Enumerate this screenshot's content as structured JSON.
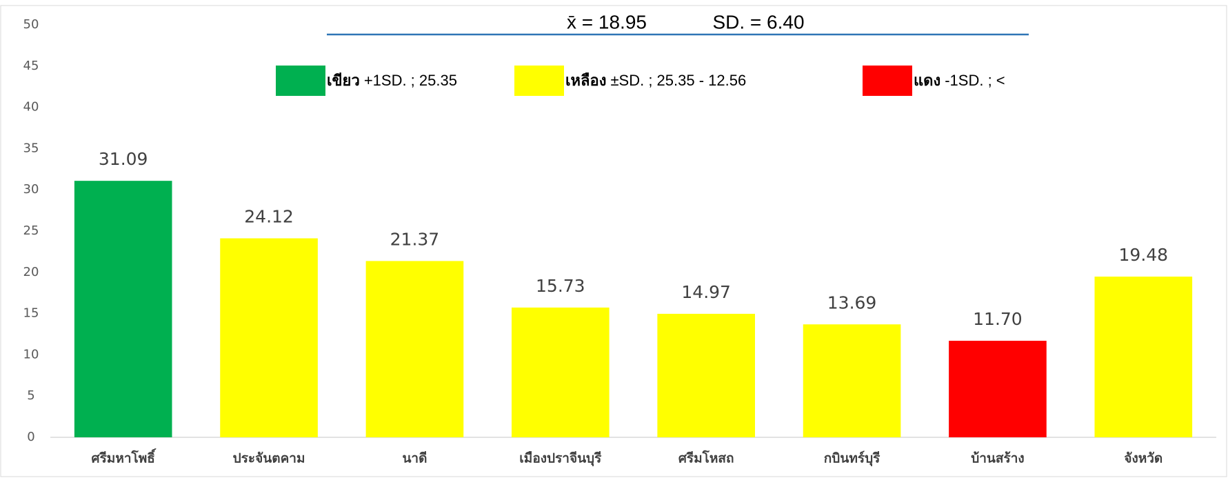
{
  "chart_data": {
    "type": "bar",
    "annotation": {
      "mean": "x̄ =  18.95",
      "sd": "SD. = 6.40"
    },
    "legend": [
      {
        "name": "เขียว",
        "label": "+1SD. ; 25.35",
        "color": "#00b050"
      },
      {
        "name": "เหลือง",
        "label": "±SD. ;   25.35  -  12.56",
        "color": "#ffff00"
      },
      {
        "name": "แดง",
        "label": "-1SD. ; <",
        "color": "#ff0000"
      }
    ],
    "categories": [
      "ศรีมหาโพธิ์",
      "ประจันตคาม",
      "นาดี",
      "เมืองปราจีนบุรี",
      "ศรีมโหสถ",
      "กบินทร์บุรี",
      "บ้านสร้าง",
      "จังหวัด"
    ],
    "values": [
      31.09,
      24.12,
      21.37,
      15.73,
      14.97,
      13.69,
      11.7,
      19.48
    ],
    "value_labels": [
      "31.09",
      "24.12",
      "21.37",
      "15.73",
      "14.97",
      "13.69",
      "11.70",
      "19.48"
    ],
    "colors": [
      "#00b050",
      "#ffff00",
      "#ffff00",
      "#ffff00",
      "#ffff00",
      "#ffff00",
      "#ff0000",
      "#ffff00"
    ],
    "ylim": [
      0,
      50
    ],
    "yticks": [
      0,
      5,
      10,
      15,
      20,
      25,
      30,
      35,
      40,
      45,
      50
    ],
    "grid": false
  }
}
